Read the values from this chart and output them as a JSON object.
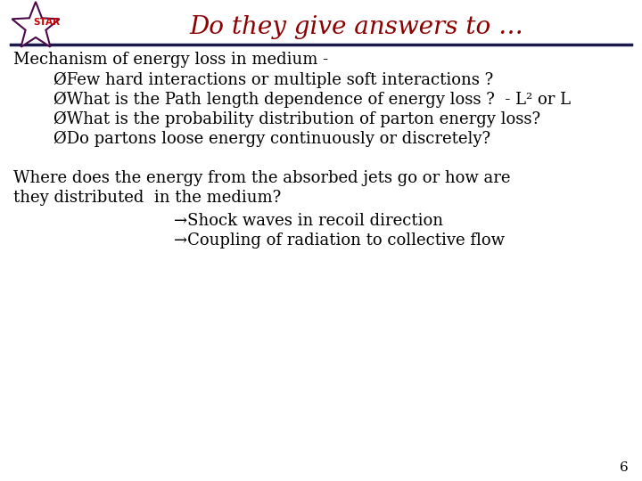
{
  "bg_color": "#ffffff",
  "title": "Do they give answers to …",
  "title_color": "#8B0000",
  "title_fontsize": 20,
  "line_color": "#1a1a4e",
  "section1_header": "Mechanism of energy loss in medium -",
  "bullet_marker": "Ø",
  "bullet_texts": [
    "Few hard interactions or multiple soft interactions ?",
    "What is the Path length dependence of energy loss ?  - L² or L",
    "What is the probability distribution of parton energy loss?",
    "Do partons loose energy continuously or discretely?"
  ],
  "section2_text1": "Where does the energy from the absorbed jets go or how are",
  "section2_text2": "they distributed  in the medium?",
  "arrow_marker": "→",
  "arrow_texts": [
    "Shock waves in recoil direction",
    "Coupling of radiation to collective flow"
  ],
  "page_number": "6",
  "star_outline_color": "#4a0a4a",
  "star_fill_color": "#ffffff",
  "star_label_color": "#cc0000",
  "text_color": "#000000",
  "header_fontsize": 13,
  "body_fontsize": 13,
  "arrow_fontsize": 13
}
